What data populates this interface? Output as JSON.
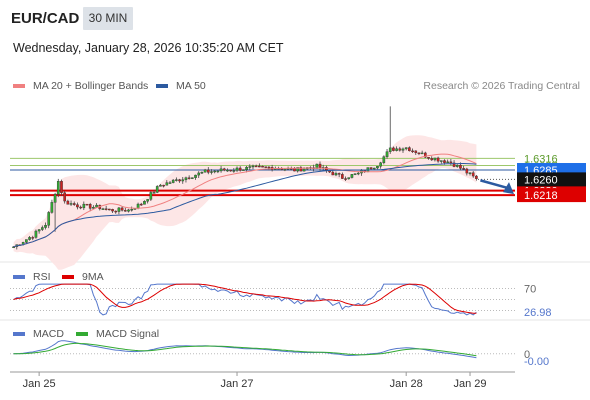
{
  "header": {
    "symbol": "EUR/CAD",
    "timeframe": "30 MIN",
    "datetime": "Wednesday, January 28, 2026 10:35:20 AM CET",
    "legend_ma20": "MA 20 + Bollinger Bands",
    "legend_ma50": "MA 50",
    "research": "Research © 2026 Trading Central"
  },
  "colors": {
    "ma20": "#f08080",
    "ma50": "#2c5aa0",
    "band": "#fde3e3",
    "bull": "#33aa33",
    "bear": "#cc2222",
    "resistance": "#9dc76b",
    "support": "#dd0000",
    "price_tag": "#1e6fe8",
    "rsi": "#5577cc",
    "rsi_ma": "#dd0000",
    "macd": "#5577cc",
    "macd_signal": "#33aa33"
  },
  "chart_data": [
    {
      "type": "candlestick",
      "ylim": [
        1.605,
        1.648
      ],
      "x_ticks": [
        "Jan 25",
        "Jan 27",
        "Jan 28",
        "Jan 29"
      ],
      "price_labels": {
        "resistance": "1.6316",
        "hidden_resistance": "1.6297",
        "pivot": "1.6285",
        "last": "1.6260",
        "hidden_support": "1.6230",
        "support": "1.6218"
      },
      "levels": {
        "resistance": 1.6316,
        "hidden_resistance": 1.6297,
        "pivot": 1.6285,
        "last": 1.626,
        "hidden_support": 1.623,
        "support": 1.6218
      },
      "series": [
        {
          "name": "MA 20 + Bollinger Bands"
        },
        {
          "name": "MA 50"
        }
      ]
    },
    {
      "type": "line",
      "series": [
        {
          "name": "RSI"
        },
        {
          "name": "9MA"
        }
      ],
      "ylim": [
        20,
        80
      ],
      "ref_label": "70",
      "ref_levels": [
        70,
        50,
        30
      ],
      "last_label": "26.98",
      "last_value": 26.98
    },
    {
      "type": "line",
      "series": [
        {
          "name": "MACD"
        },
        {
          "name": "MACD Signal"
        }
      ],
      "ylim": [
        -0.0045,
        0.003
      ],
      "zero_label": "0",
      "last_label": "-0.00",
      "last_value": -0.002
    }
  ],
  "indicators": {
    "rsi_label": "RSI",
    "rsi_ma_label": "9MA",
    "macd_label": "MACD",
    "macd_signal_label": "MACD Signal"
  }
}
